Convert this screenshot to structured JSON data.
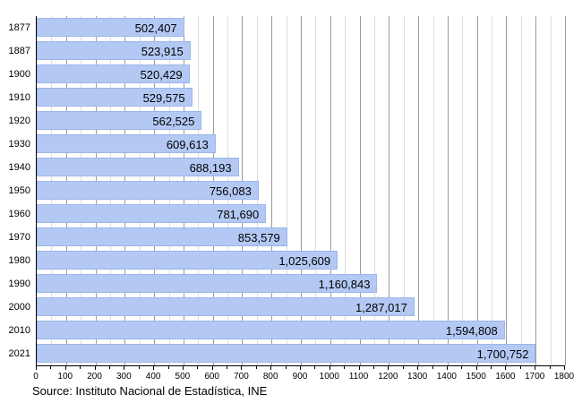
{
  "chart_data": {
    "type": "bar",
    "orientation": "horizontal",
    "title": "",
    "xlabel": "",
    "ylabel": "",
    "categories": [
      "1877",
      "1887",
      "1900",
      "1910",
      "1920",
      "1930",
      "1940",
      "1950",
      "1960",
      "1970",
      "1980",
      "1990",
      "2000",
      "2010",
      "2021"
    ],
    "values": [
      502407,
      523915,
      520429,
      529575,
      562525,
      609613,
      688193,
      756083,
      781690,
      853579,
      1025609,
      1160843,
      1287017,
      1594808,
      1700752
    ],
    "value_labels": [
      "502,407",
      "523,915",
      "520,429",
      "529,575",
      "562,525",
      "609,613",
      "688,193",
      "756,083",
      "781,690",
      "853,579",
      "1,025,609",
      "1,160,843",
      "1,287,017",
      "1,594,808",
      "1,700,752"
    ],
    "x_axis": {
      "min": 0,
      "max": 1800,
      "major_step": 100,
      "minor_step": 50,
      "units": "thousands",
      "tick_labels": [
        "0",
        "100",
        "200",
        "300",
        "400",
        "500",
        "600",
        "700",
        "800",
        "900",
        "1000",
        "1100",
        "1200",
        "1300",
        "1400",
        "1500",
        "1600",
        "1700",
        "1800"
      ]
    },
    "grid": "vertical, minor every 50 (light), major every 100 (dark)",
    "legend": null
  },
  "source": "Source: Instituto Nacional de Estadística, INE",
  "colors": {
    "bar_fill": "#b3c9f4",
    "bar_border": "#9db6e8",
    "grid_minor": "#dcdcdc",
    "grid_major": "#9b9b9b",
    "axis": "#000000",
    "text": "#000000",
    "background": "#ffffff"
  }
}
